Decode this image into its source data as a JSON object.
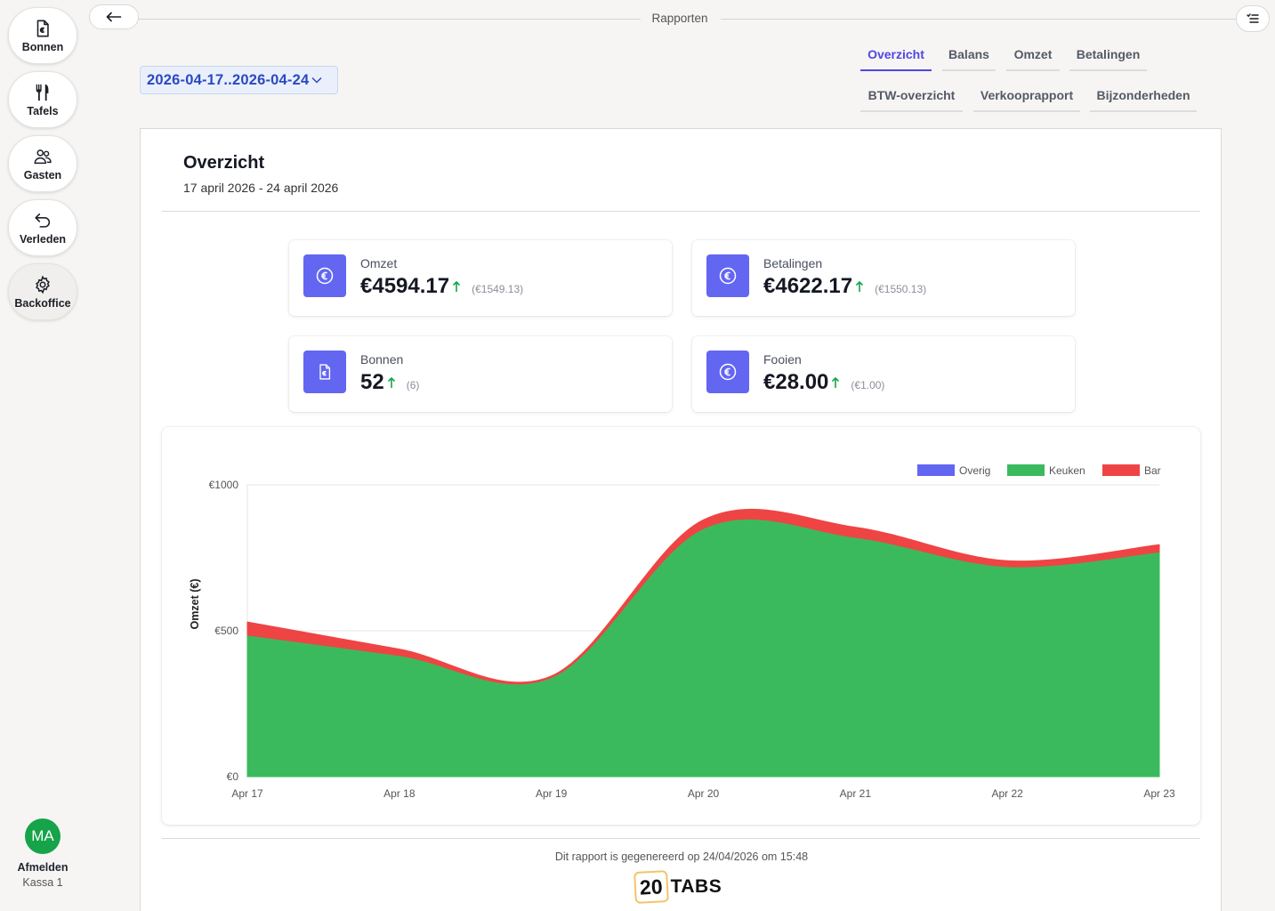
{
  "sidebar": {
    "items": [
      {
        "label": "Bonnen",
        "icon": "receipt-euro-icon"
      },
      {
        "label": "Tafels",
        "icon": "fork-knife-icon"
      },
      {
        "label": "Gasten",
        "icon": "users-icon"
      },
      {
        "label": "Verleden",
        "icon": "undo-arrow-icon"
      },
      {
        "label": "Backoffice",
        "icon": "gear-icon"
      }
    ],
    "user_initials": "MA",
    "logout_label": "Afmelden",
    "register_label": "Kassa 1"
  },
  "header": {
    "title": "Rapporten",
    "back_icon": "arrow-left-icon",
    "menu_icon": "list-menu-icon"
  },
  "date_range": "2026-04-17..2026-04-24",
  "tabs": [
    {
      "label": "Overzicht",
      "active": true
    },
    {
      "label": "Balans",
      "active": false
    },
    {
      "label": "Omzet",
      "active": false
    },
    {
      "label": "Betalingen",
      "active": false
    },
    {
      "label": "BTW-overzicht",
      "active": false
    },
    {
      "label": "Verkooprapport",
      "active": false
    },
    {
      "label": "Bijzonderheden",
      "active": false
    }
  ],
  "report": {
    "title": "Overzicht",
    "subtitle": "17 april 2026 - 24 april 2026"
  },
  "stats": [
    {
      "label": "Omzet",
      "value": "€4594.17",
      "previous": "(€1549.13)",
      "icon": "euro-icon",
      "trend": "up"
    },
    {
      "label": "Betalingen",
      "value": "€4622.17",
      "previous": "(€1550.13)",
      "icon": "euro-icon",
      "trend": "up"
    },
    {
      "label": "Bonnen",
      "value": "52",
      "previous": "(6)",
      "icon": "receipt-euro-icon",
      "trend": "up"
    },
    {
      "label": "Fooien",
      "value": "€28.00",
      "previous": "(€1.00)",
      "icon": "euro-icon",
      "trend": "up"
    }
  ],
  "colors": {
    "accent": "#4f46e5",
    "icon_bg": "#6366f1",
    "trend_up": "#16a34a",
    "overig": "#6366f1",
    "keuken": "#3bba5d",
    "bar": "#ef4444"
  },
  "chart_data": {
    "type": "area",
    "stacked": true,
    "x": [
      "Apr 17",
      "Apr 18",
      "Apr 19",
      "Apr 20",
      "Apr 21",
      "Apr 22",
      "Apr 23"
    ],
    "series": [
      {
        "name": "Overig",
        "values": [
          0,
          0,
          0,
          0,
          0,
          0,
          0
        ],
        "color": "#6366f1"
      },
      {
        "name": "Keuken",
        "values": [
          485,
          415,
          340,
          850,
          820,
          720,
          770
        ],
        "color": "#3bba5d"
      },
      {
        "name": "Bar",
        "values": [
          45,
          22,
          5,
          30,
          35,
          20,
          25
        ],
        "color": "#ef4444"
      }
    ],
    "y_ticks": [
      "€0",
      "€500",
      "€1000"
    ],
    "ylabel": "Omzet (€)",
    "ylim": [
      0,
      1000
    ],
    "legend_position": "top-right",
    "grid": true
  },
  "footer": {
    "generated_text": "Dit rapport is gegenereerd op 24/04/2026 om 15:48",
    "logo_number": "20",
    "logo_word": "TABS"
  }
}
